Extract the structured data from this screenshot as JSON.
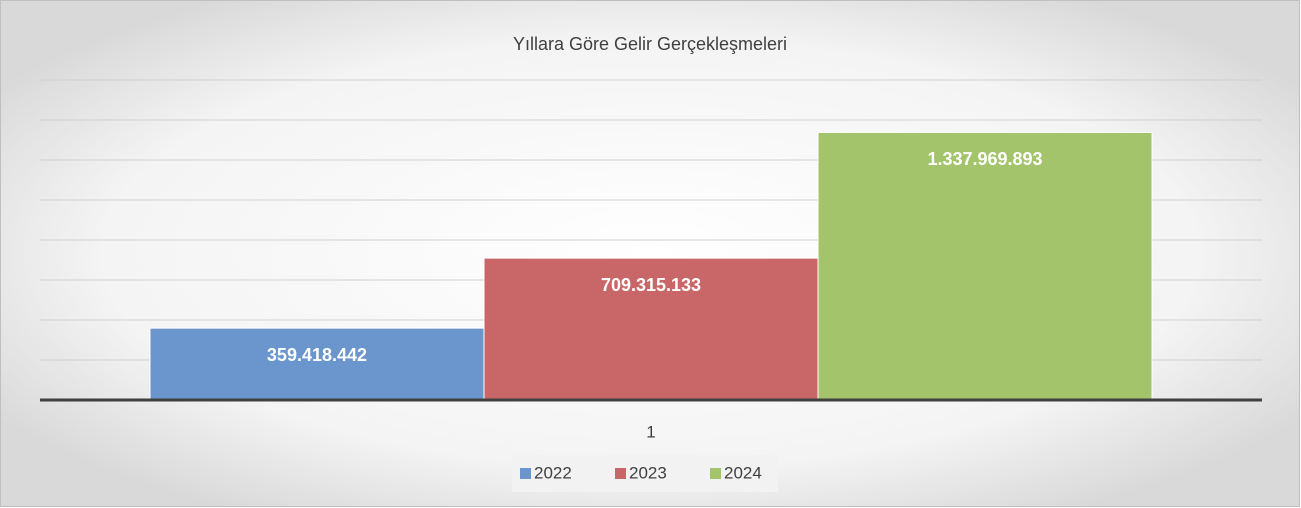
{
  "chart_data": {
    "type": "bar",
    "title": "Yıllara Göre Gelir Gerçekleşmeleri",
    "categories": [
      "1"
    ],
    "series": [
      {
        "name": "2022",
        "color": "#6a96cd",
        "values": [
          359418442
        ],
        "value_labels": [
          "359.418.442"
        ]
      },
      {
        "name": "2023",
        "color": "#c96667",
        "values": [
          709315133
        ],
        "value_labels": [
          "709.315.133"
        ]
      },
      {
        "name": "2024",
        "color": "#a4c46c",
        "values": [
          1337969893
        ],
        "value_labels": [
          "1.337.969.893"
        ]
      }
    ],
    "ylim": [
      0,
      1600000000
    ],
    "yticks": [
      0,
      200000000,
      400000000,
      600000000,
      800000000,
      1000000000,
      1200000000,
      1400000000,
      1600000000
    ],
    "grid": true,
    "legend": "bottom"
  }
}
